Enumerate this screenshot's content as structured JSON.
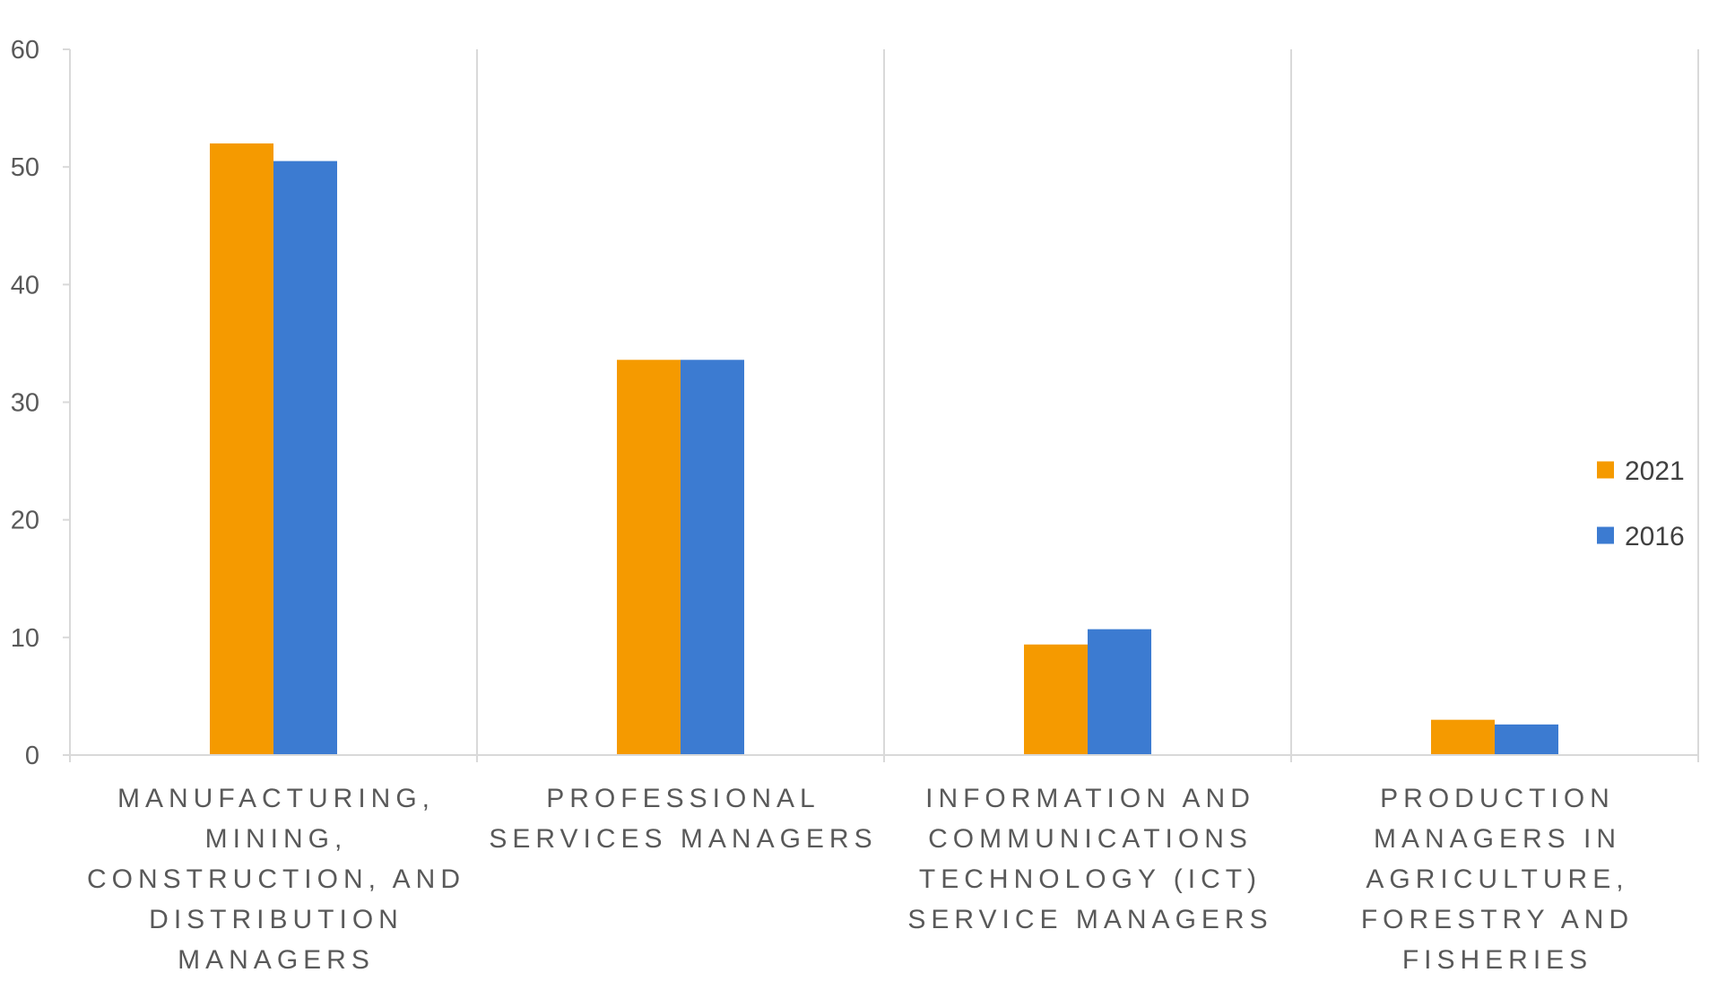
{
  "chart_data": {
    "type": "bar",
    "categories": [
      [
        "MANUFACTURING,",
        "MINING,",
        "CONSTRUCTION, AND",
        "DISTRIBUTION",
        "MANAGERS"
      ],
      [
        "PROFESSIONAL",
        "SERVICES MANAGERS"
      ],
      [
        "INFORMATION AND",
        "COMMUNICATIONS",
        "TECHNOLOGY (ICT)",
        "SERVICE MANAGERS"
      ],
      [
        "PRODUCTION",
        "MANAGERS IN",
        "AGRICULTURE,",
        "FORESTRY AND",
        "FISHERIES"
      ]
    ],
    "series": [
      {
        "name": "2021",
        "color": "#f59a00",
        "values": [
          52.0,
          33.6,
          9.4,
          3.0
        ]
      },
      {
        "name": "2016",
        "color": "#3c7bd1",
        "values": [
          50.5,
          33.6,
          10.7,
          2.6
        ]
      }
    ],
    "ylim": [
      0,
      60
    ],
    "yticks": [
      0,
      10,
      20,
      30,
      40,
      50,
      60
    ],
    "grid": "vertical category separators",
    "legend_position": "right"
  }
}
